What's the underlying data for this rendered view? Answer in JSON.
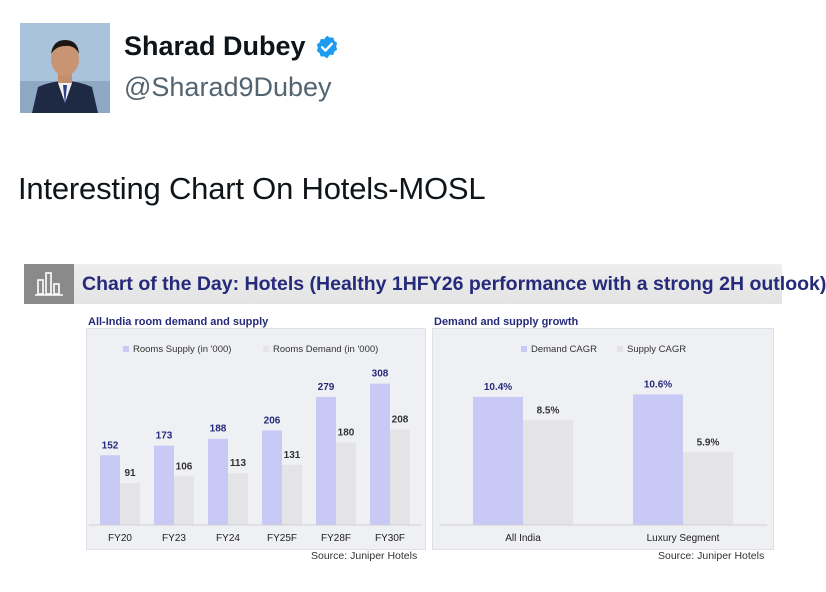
{
  "tweet": {
    "author_name": "Sharad Dubey",
    "author_handle": "@Sharad9Dubey",
    "text": "Interesting Chart On Hotels-MOSL",
    "verified_icon": "verified-badge-icon",
    "colors": {
      "verified": "#1d9bf0",
      "handle": "#536471"
    }
  },
  "card": {
    "banner_title": "Chart of the Day: Hotels (Healthy 1HFY26 performance with a strong 2H outlook)",
    "banner_icon": "bar-chart-icon",
    "colors": {
      "title": "#262a7a",
      "supply": "#c8c9f5",
      "demand": "#e4e4e6"
    }
  },
  "chart_data": [
    {
      "type": "bar",
      "title": "All-India room demand and supply",
      "categories": [
        "FY20",
        "FY23",
        "FY24",
        "FY25F",
        "FY28F",
        "FY30F"
      ],
      "series": [
        {
          "name": "Rooms Supply (in '000)",
          "values": [
            152,
            173,
            188,
            206,
            279,
            308
          ]
        },
        {
          "name": "Rooms Demand (in '000)",
          "values": [
            91,
            106,
            113,
            131,
            180,
            208
          ]
        }
      ],
      "ylim": [
        0,
        340
      ],
      "legend": "top",
      "grid": false,
      "source": "Source: Juniper Hotels"
    },
    {
      "type": "bar",
      "title": "Demand and supply growth",
      "categories": [
        "All India",
        "Luxury Segment"
      ],
      "series": [
        {
          "name": "Demand CAGR",
          "values": [
            10.4,
            10.6
          ],
          "labels": [
            "10.4%",
            "10.6%"
          ]
        },
        {
          "name": "Supply CAGR",
          "values": [
            8.5,
            5.9
          ],
          "labels": [
            "8.5%",
            "5.9%"
          ]
        }
      ],
      "ylim": [
        0,
        12.5
      ],
      "legend": "top",
      "grid": false,
      "source": "Source: Juniper Hotels"
    }
  ]
}
